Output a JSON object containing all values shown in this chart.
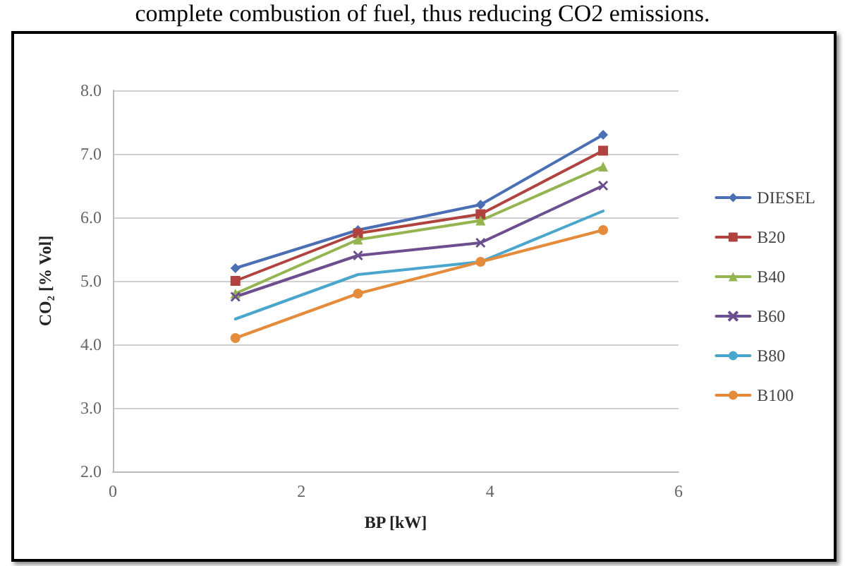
{
  "chart_data": {
    "type": "line",
    "annotations": [
      "complete combustion of fuel, thus reducing CO2 emissions."
    ],
    "xlabel": "BP [kW]",
    "ylabel": "CO₂ [% Vol]",
    "x": [
      1.3,
      2.6,
      3.9,
      5.2
    ],
    "series": [
      {
        "name": "DIESEL",
        "color": "#4a6fb5",
        "marker": "diamond",
        "values": [
          5.2,
          5.8,
          6.2,
          7.3
        ]
      },
      {
        "name": "B20",
        "color": "#b0433f",
        "marker": "square",
        "values": [
          5.0,
          5.75,
          6.05,
          7.05
        ]
      },
      {
        "name": "B40",
        "color": "#93b44e",
        "marker": "triangle",
        "values": [
          4.8,
          5.65,
          5.95,
          6.8
        ]
      },
      {
        "name": "B60",
        "color": "#6d4f8f",
        "marker": "cross",
        "values": [
          4.75,
          5.4,
          5.6,
          6.5
        ]
      },
      {
        "name": "B80",
        "color": "#4aa6cc",
        "marker": "none",
        "values": [
          4.4,
          5.1,
          5.3,
          6.1
        ]
      },
      {
        "name": "B100",
        "color": "#e48b3c",
        "marker": "circle",
        "values": [
          4.1,
          4.8,
          5.3,
          5.8
        ]
      }
    ],
    "xlim": [
      0,
      6
    ],
    "xticks": [
      0,
      2,
      4,
      6
    ],
    "ylim": [
      2,
      8
    ],
    "yticks": [
      {
        "value": 2,
        "label": "2.0"
      },
      {
        "value": 3,
        "label": "3.0"
      },
      {
        "value": 4,
        "label": "4.0"
      },
      {
        "value": 5,
        "label": "5.0"
      },
      {
        "value": 6,
        "label": "6.0"
      },
      {
        "value": 7,
        "label": "7.0"
      },
      {
        "value": 8,
        "label": "8.0"
      }
    ],
    "grid": "y",
    "legend": "right",
    "line_style": "solid"
  }
}
